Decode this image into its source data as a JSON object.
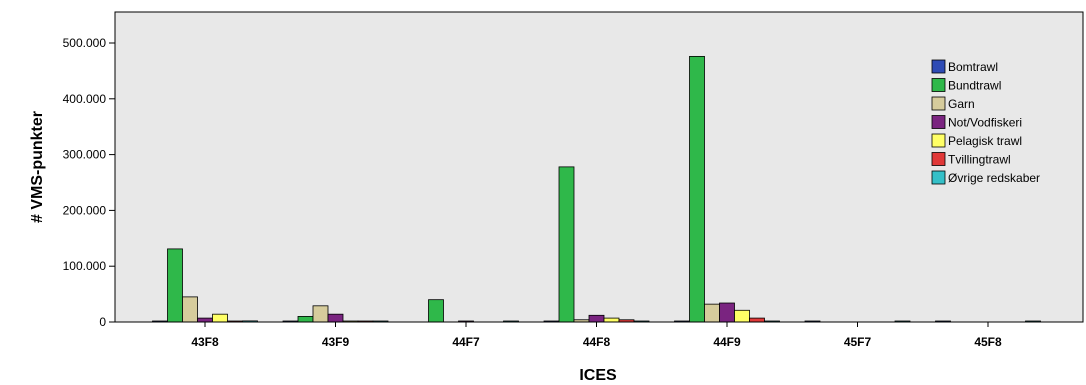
{
  "chart_data": {
    "type": "bar",
    "xlabel": "ICES",
    "ylabel": "# VMS-punkter",
    "ylim": [
      0,
      520000
    ],
    "yticks": [
      0,
      100000,
      200000,
      300000,
      400000,
      500000
    ],
    "ytick_labels": [
      "0",
      "100.000",
      "200.000",
      "300.000",
      "400.000",
      "500.000"
    ],
    "categories": [
      "43F8",
      "43F9",
      "44F7",
      "44F8",
      "44F9",
      "45F7",
      "45F8"
    ],
    "legend_position": "right",
    "grid": false,
    "plot_background": "#e8e8e8",
    "series": [
      {
        "name": "Bomtrawl",
        "color": "#2e4bb5",
        "values": [
          1500,
          500,
          0,
          300,
          500,
          200,
          200
        ]
      },
      {
        "name": "Bundtrawl",
        "color": "#2fb84a",
        "values": [
          131000,
          10000,
          40000,
          278000,
          476000,
          0,
          0
        ]
      },
      {
        "name": "Garn",
        "color": "#d6cc9c",
        "values": [
          45000,
          29000,
          0,
          4000,
          32000,
          0,
          0
        ]
      },
      {
        "name": "Not/Vodfiskeri",
        "color": "#7a2480",
        "values": [
          7000,
          14000,
          500,
          12000,
          34000,
          0,
          0
        ]
      },
      {
        "name": "Pelagisk trawl",
        "color": "#ffff66",
        "values": [
          14000,
          1500,
          0,
          7000,
          21000,
          0,
          0
        ]
      },
      {
        "name": "Tvillingtrawl",
        "color": "#e03838",
        "values": [
          500,
          300,
          0,
          4000,
          7000,
          0,
          0
        ]
      },
      {
        "name": "Øvrige redskaber",
        "color": "#35c0c8",
        "values": [
          2000,
          500,
          500,
          500,
          500,
          300,
          1000
        ]
      }
    ]
  }
}
